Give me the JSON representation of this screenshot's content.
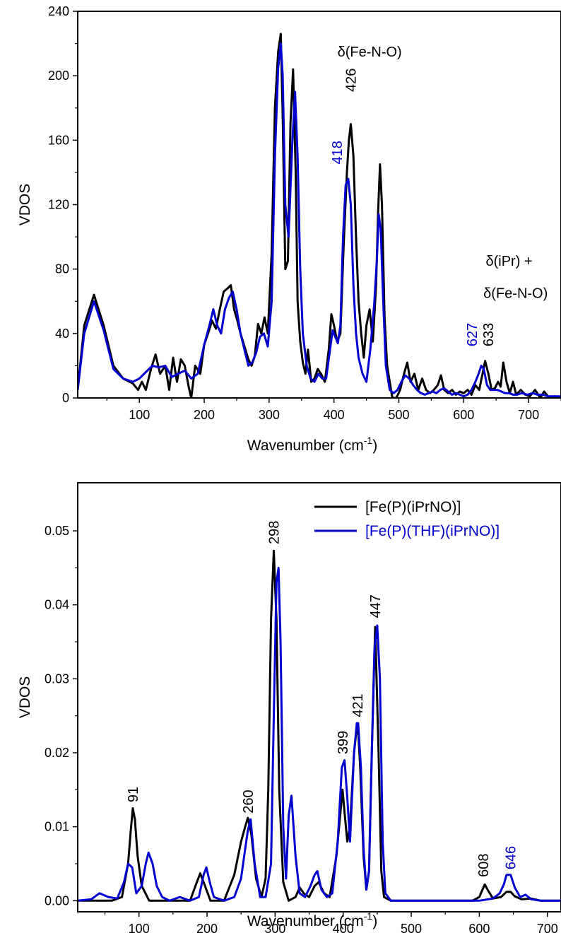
{
  "chart_data": [
    {
      "type": "line",
      "title": "",
      "xlabel": "Wavenumber (cm",
      "xlabel_sup": "-1",
      "xlabel_end": ")",
      "ylabel": "VDOS",
      "xlim": [
        5,
        750
      ],
      "ylim": [
        0,
        240
      ],
      "xticks": [
        100,
        200,
        300,
        400,
        500,
        600,
        700
      ],
      "xtick_labels": [
        "100",
        "200",
        "300",
        "400",
        "500",
        "600",
        "700"
      ],
      "yticks": [
        0,
        40,
        80,
        120,
        160,
        200,
        240
      ],
      "ytick_labels": [
        "0",
        "40",
        "80",
        "120",
        "160",
        "200",
        "240"
      ],
      "grid": false,
      "series": [
        {
          "color": "#000000",
          "x": [
            5,
            15,
            30,
            45,
            60,
            75,
            90,
            98,
            104,
            110,
            118,
            125,
            132,
            140,
            146,
            152,
            158,
            164,
            170,
            176,
            180,
            186,
            194,
            200,
            206,
            212,
            218,
            224,
            230,
            236,
            241,
            246,
            251,
            256,
            262,
            268,
            273,
            278,
            283,
            288,
            293,
            298,
            304,
            309,
            314,
            318,
            321,
            325,
            329,
            333,
            337,
            341,
            344,
            348,
            352,
            356,
            360,
            365,
            370,
            375,
            380,
            386,
            392,
            396,
            400,
            405,
            410,
            415,
            420,
            423,
            426,
            430,
            434,
            438,
            442,
            446,
            450,
            455,
            460,
            465,
            468,
            471,
            474,
            478,
            482,
            486,
            490,
            496,
            502,
            508,
            513,
            518,
            524,
            530,
            536,
            542,
            548,
            554,
            560,
            565,
            570,
            576,
            582,
            588,
            594,
            600,
            606,
            612,
            618,
            624,
            629,
            633,
            638,
            643,
            648,
            653,
            657,
            661,
            666,
            671,
            676,
            681,
            688,
            695,
            702,
            710,
            718,
            724,
            732,
            740,
            750
          ],
          "y": [
            5,
            45,
            64,
            45,
            20,
            12,
            9,
            5,
            10,
            5,
            18,
            27,
            15,
            20,
            5,
            25,
            10,
            24,
            20,
            7,
            0,
            20,
            15,
            33,
            40,
            48,
            43,
            55,
            66,
            68,
            70,
            55,
            48,
            40,
            32,
            24,
            20,
            26,
            46,
            40,
            50,
            40,
            90,
            180,
            215,
            226,
            175,
            80,
            85,
            170,
            204,
            140,
            60,
            35,
            22,
            15,
            30,
            10,
            12,
            18,
            15,
            10,
            30,
            52,
            45,
            35,
            40,
            95,
            140,
            160,
            170,
            150,
            100,
            60,
            40,
            25,
            45,
            55,
            35,
            70,
            115,
            145,
            120,
            50,
            20,
            10,
            0,
            0,
            5,
            15,
            22,
            10,
            15,
            5,
            12,
            5,
            3,
            5,
            8,
            14,
            5,
            3,
            5,
            2,
            4,
            3,
            5,
            2,
            8,
            5,
            15,
            23,
            15,
            5,
            6,
            10,
            7,
            22,
            10,
            3,
            10,
            2,
            5,
            2,
            1,
            5,
            0,
            4,
            0,
            1,
            0
          ]
        },
        {
          "color": "#0000d0",
          "x": [
            5,
            15,
            30,
            45,
            60,
            75,
            90,
            100,
            110,
            120,
            130,
            140,
            150,
            160,
            170,
            180,
            190,
            200,
            208,
            214,
            220,
            226,
            232,
            238,
            244,
            250,
            256,
            262,
            268,
            274,
            280,
            286,
            292,
            298,
            304,
            309,
            314,
            318,
            321,
            325,
            330,
            336,
            340,
            344,
            348,
            352,
            358,
            364,
            370,
            376,
            382,
            388,
            394,
            398,
            402,
            406,
            410,
            414,
            418,
            422,
            426,
            430,
            434,
            438,
            444,
            450,
            456,
            462,
            466,
            469,
            472,
            476,
            480,
            486,
            492,
            498,
            504,
            510,
            516,
            522,
            528,
            534,
            540,
            546,
            552,
            558,
            564,
            570,
            576,
            582,
            588,
            594,
            600,
            606,
            612,
            618,
            623,
            627,
            631,
            636,
            641,
            646,
            652,
            658,
            664,
            670,
            676,
            682,
            690,
            698,
            706,
            714,
            722,
            730,
            740,
            750
          ],
          "y": [
            5,
            40,
            60,
            42,
            18,
            12,
            10,
            12,
            16,
            20,
            19,
            20,
            13,
            15,
            17,
            12,
            15,
            33,
            45,
            55,
            45,
            40,
            55,
            62,
            66,
            55,
            40,
            30,
            20,
            22,
            28,
            38,
            40,
            32,
            60,
            150,
            205,
            220,
            200,
            120,
            100,
            160,
            190,
            150,
            80,
            40,
            20,
            12,
            10,
            15,
            12,
            12,
            30,
            42,
            38,
            34,
            45,
            100,
            132,
            136,
            120,
            70,
            40,
            25,
            15,
            10,
            30,
            58,
            85,
            114,
            105,
            60,
            20,
            5,
            3,
            5,
            10,
            14,
            12,
            8,
            5,
            3,
            2,
            3,
            4,
            3,
            5,
            6,
            4,
            2,
            3,
            2,
            1,
            2,
            5,
            10,
            15,
            20,
            18,
            8,
            5,
            5,
            5,
            4,
            3,
            3,
            2,
            2,
            3,
            2,
            3,
            2,
            2,
            1,
            1,
            1
          ]
        }
      ],
      "annotations": [
        {
          "text": "δ(Fe-N-O)",
          "x": 455,
          "y": 212,
          "color": "#000000",
          "rotate": false
        },
        {
          "text": "426",
          "x": 426,
          "y": 190,
          "color": "#000000",
          "rotate": true
        },
        {
          "text": "418",
          "x": 405,
          "y": 145,
          "color": "#0000d0",
          "rotate": true
        },
        {
          "text": "δ(iPr) +",
          "x": 670,
          "y": 82,
          "color": "#000000",
          "rotate": false
        },
        {
          "text": "δ(Fe-N-O)",
          "x": 680,
          "y": 62,
          "color": "#000000",
          "rotate": false
        },
        {
          "text": "627",
          "x": 613,
          "y": 32,
          "color": "#0000d0",
          "rotate": true
        },
        {
          "text": "633",
          "x": 638,
          "y": 32,
          "color": "#000000",
          "rotate": true
        }
      ]
    },
    {
      "type": "line",
      "title": "",
      "xlabel": "Wavenumber (cm",
      "xlabel_sup": "-1",
      "xlabel_end": ")",
      "ylabel": "VDOS",
      "xlim": [
        10,
        720
      ],
      "ylim": [
        -0.0015,
        0.0565
      ],
      "xticks": [
        100,
        200,
        300,
        400,
        500,
        600,
        700
      ],
      "xtick_labels": [
        "100",
        "200",
        "300",
        "400",
        "500",
        "600",
        "700"
      ],
      "yticks": [
        0,
        0.01,
        0.02,
        0.03,
        0.04,
        0.05
      ],
      "ytick_labels": [
        "0.00",
        "0.01",
        "0.02",
        "0.03",
        "0.04",
        "0.05"
      ],
      "grid": false,
      "legend_position": "top-right",
      "series": [
        {
          "name": "[Fe(P)(iPrNO)]",
          "color": "#000000",
          "x": [
            10,
            60,
            75,
            84,
            88,
            91,
            94,
            98,
            104,
            115,
            150,
            175,
            185,
            190,
            195,
            205,
            225,
            240,
            250,
            256,
            260,
            265,
            272,
            280,
            286,
            290,
            294,
            298,
            302,
            306,
            312,
            320,
            330,
            336,
            342,
            350,
            358,
            364,
            372,
            380,
            390,
            396,
            399,
            402,
            406,
            410,
            416,
            420,
            422,
            425,
            430,
            434,
            438,
            442,
            447,
            452,
            456,
            460,
            470,
            500,
            590,
            600,
            606,
            608,
            612,
            620,
            632,
            640,
            646,
            652,
            662,
            676,
            690,
            720
          ],
          "y": [
            0,
            0,
            0.0005,
            0.005,
            0.0095,
            0.0125,
            0.011,
            0.006,
            0.002,
            0,
            0,
            0,
            0.0025,
            0.0037,
            0.0025,
            0,
            0,
            0.0035,
            0.008,
            0.01,
            0.0112,
            0.009,
            0.003,
            0.0005,
            0.003,
            0.015,
            0.038,
            0.0473,
            0.038,
            0.015,
            0.0025,
            0,
            0.0005,
            0.0018,
            0.001,
            0.0005,
            0.002,
            0.0025,
            0.001,
            0.0005,
            0.006,
            0.012,
            0.015,
            0.012,
            0.008,
            0.01,
            0.02,
            0.0235,
            0.023,
            0.018,
            0.006,
            0.0015,
            0.004,
            0.02,
            0.037,
            0.02,
            0.004,
            0.0005,
            0,
            0,
            0,
            0.0005,
            0.0018,
            0.0022,
            0.0015,
            0.0003,
            0.0005,
            0.0012,
            0.0012,
            0.0006,
            0.0002,
            0.0003,
            0,
            0
          ]
        },
        {
          "name": "[Fe(P)(THF)(iPrNO)]",
          "color": "#0000d0",
          "x": [
            10,
            30,
            42,
            55,
            68,
            78,
            84,
            90,
            96,
            104,
            110,
            114,
            120,
            126,
            134,
            145,
            160,
            175,
            188,
            195,
            199,
            204,
            210,
            225,
            240,
            250,
            256,
            260,
            264,
            270,
            278,
            286,
            294,
            298,
            302,
            305,
            308,
            312,
            316,
            320,
            324,
            330,
            336,
            344,
            352,
            358,
            362,
            368,
            376,
            384,
            392,
            398,
            402,
            406,
            410,
            416,
            420,
            422,
            426,
            430,
            434,
            438,
            442,
            446,
            450,
            454,
            458,
            462,
            470,
            500,
            600,
            620,
            630,
            636,
            640,
            646,
            652,
            660,
            668,
            676,
            690,
            720
          ],
          "y": [
            0,
            0.0002,
            0.001,
            0.0005,
            0.0003,
            0.0025,
            0.005,
            0.0045,
            0.001,
            0.002,
            0.005,
            0.0065,
            0.005,
            0.002,
            0.0005,
            0,
            0.0005,
            0,
            0.0005,
            0.0035,
            0.0045,
            0.0025,
            0.0005,
            0,
            0.0005,
            0.003,
            0.007,
            0.0095,
            0.011,
            0.005,
            0.0005,
            0.0005,
            0.005,
            0.025,
            0.043,
            0.045,
            0.035,
            0.01,
            0.003,
            0.0115,
            0.0142,
            0.006,
            0.001,
            0.0005,
            0.002,
            0.0035,
            0.004,
            0.0015,
            0.0005,
            0.001,
            0.008,
            0.018,
            0.019,
            0.014,
            0.008,
            0.02,
            0.024,
            0.024,
            0.018,
            0.007,
            0.0015,
            0.004,
            0.02,
            0.034,
            0.0372,
            0.03,
            0.008,
            0.001,
            0,
            0,
            0,
            0.0003,
            0.001,
            0.0022,
            0.0035,
            0.0035,
            0.0018,
            0.0005,
            0.0008,
            0.0002,
            0,
            0
          ]
        }
      ],
      "annotations": [
        {
          "text": "91",
          "x": 91,
          "y": 0.0133,
          "color": "#000000",
          "rotate": true
        },
        {
          "text": "260",
          "x": 260,
          "y": 0.0118,
          "color": "#000000",
          "rotate": true
        },
        {
          "text": "298",
          "x": 298,
          "y": 0.0482,
          "color": "#000000",
          "rotate": true
        },
        {
          "text": "399",
          "x": 399,
          "y": 0.0198,
          "color": "#000000",
          "rotate": true
        },
        {
          "text": "421",
          "x": 421,
          "y": 0.0248,
          "color": "#000000",
          "rotate": true
        },
        {
          "text": "447",
          "x": 447,
          "y": 0.0382,
          "color": "#000000",
          "rotate": true
        },
        {
          "text": "608",
          "x": 606,
          "y": 0.0032,
          "color": "#000000",
          "rotate": true
        },
        {
          "text": "646",
          "x": 646,
          "y": 0.0042,
          "color": "#0000d0",
          "rotate": true
        }
      ]
    }
  ]
}
